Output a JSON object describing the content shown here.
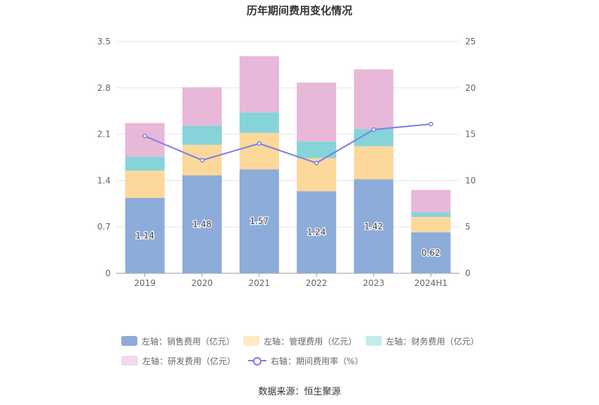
{
  "chart_data": {
    "type": "bar",
    "stacked": true,
    "title": "历年期间费用变化情况",
    "categories": [
      "2019",
      "2020",
      "2021",
      "2022",
      "2023",
      "2024H1"
    ],
    "left_axis": {
      "min": 0,
      "max": 3.5,
      "ticks": [
        "0",
        "0.7",
        "1.4",
        "2.1",
        "2.8",
        "3.5"
      ]
    },
    "right_axis": {
      "min": 0,
      "max": 25,
      "ticks": [
        "0",
        "5",
        "10",
        "15",
        "20",
        "25"
      ]
    },
    "series": [
      {
        "name": "左轴：销售费用（亿元）",
        "color": "#8eacd9",
        "values": [
          1.14,
          1.48,
          1.57,
          1.24,
          1.42,
          0.62
        ],
        "labels": [
          "1.14",
          "1.48",
          "1.57",
          "1.24",
          "1.42",
          "0.62"
        ]
      },
      {
        "name": "左轴：管理费用（亿元）",
        "color": "#fdd89b",
        "values": [
          0.41,
          0.46,
          0.55,
          0.5,
          0.5,
          0.23
        ]
      },
      {
        "name": "左轴：财务费用（亿元）",
        "color": "#86d4d9",
        "values": [
          0.21,
          0.29,
          0.31,
          0.25,
          0.26,
          0.07
        ]
      },
      {
        "name": "左轴：研发费用（亿元）",
        "color": "#e8b8d8",
        "values": [
          0.51,
          0.58,
          0.85,
          0.89,
          0.9,
          0.34
        ]
      }
    ],
    "line_series": {
      "name": "右轴：期间费用率（%）",
      "color": "#7b7de8",
      "values": [
        14.8,
        12.2,
        14.0,
        11.9,
        15.5,
        16.1
      ]
    }
  },
  "legend": {
    "row1": [
      "左轴：销售费用（亿元）",
      "左轴：管理费用（亿元）",
      "左轴：财务费用（亿元）"
    ],
    "row2": [
      "左轴：研发费用（亿元）",
      "右轴：期间费用率（%）"
    ],
    "colors": [
      "#8eacd9",
      "#ffe9c4",
      "#c4ecee",
      "#f3d9ec"
    ]
  },
  "source": "数据来源：恒生聚源"
}
